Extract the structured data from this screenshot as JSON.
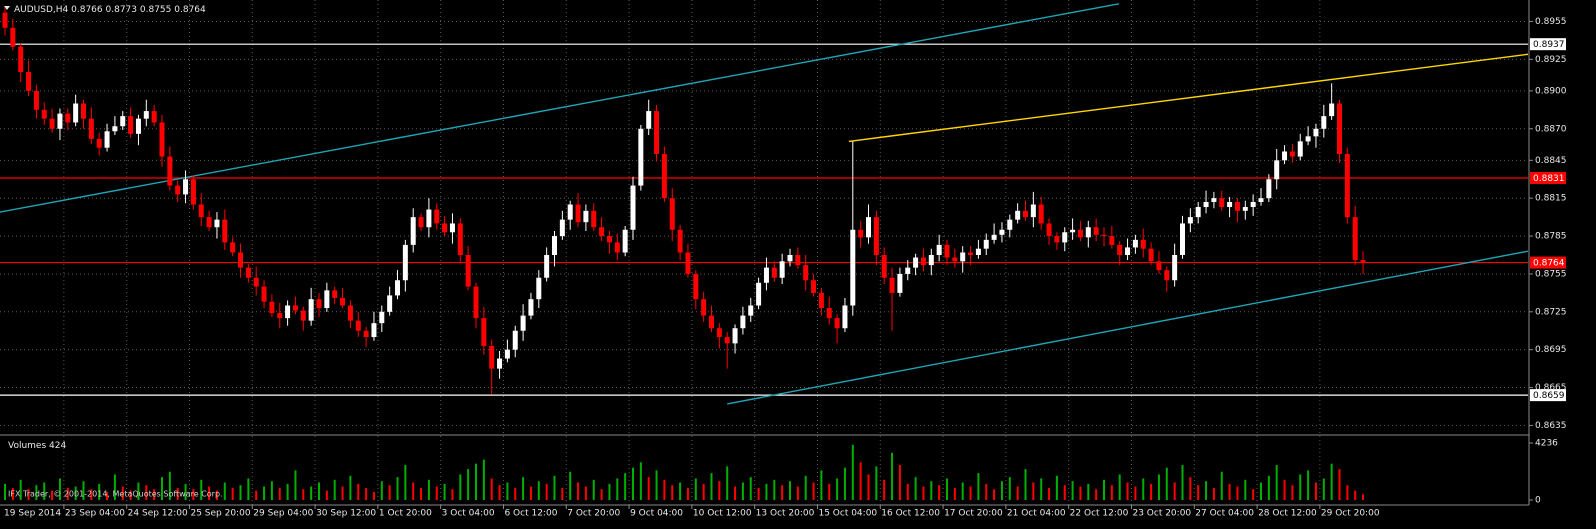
{
  "chart_data": {
    "type": "candlestick",
    "symbol": "AUDUSD,H4",
    "ohlc": [
      [
        0.8962,
        0.8966,
        0.8944,
        0.895
      ],
      [
        0.895,
        0.8957,
        0.8932,
        0.8935
      ],
      [
        0.8935,
        0.8938,
        0.8907,
        0.8915
      ],
      [
        0.8915,
        0.8924,
        0.8896,
        0.89
      ],
      [
        0.89,
        0.8905,
        0.8878,
        0.8885
      ],
      [
        0.8885,
        0.8891,
        0.8873,
        0.8878
      ],
      [
        0.8878,
        0.8886,
        0.8867,
        0.887
      ],
      [
        0.887,
        0.8886,
        0.8861,
        0.8882
      ],
      [
        0.8882,
        0.8886,
        0.8869,
        0.8875
      ],
      [
        0.8875,
        0.8897,
        0.8872,
        0.889
      ],
      [
        0.889,
        0.8893,
        0.887,
        0.8878
      ],
      [
        0.8878,
        0.8887,
        0.8858,
        0.8862
      ],
      [
        0.8862,
        0.8867,
        0.8849,
        0.8855
      ],
      [
        0.8855,
        0.8874,
        0.8852,
        0.8868
      ],
      [
        0.8868,
        0.888,
        0.8865,
        0.8872
      ],
      [
        0.8872,
        0.8884,
        0.8869,
        0.888
      ],
      [
        0.888,
        0.8887,
        0.8863,
        0.8866
      ],
      [
        0.8866,
        0.8881,
        0.8857,
        0.8878
      ],
      [
        0.8878,
        0.8893,
        0.8872,
        0.8884
      ],
      [
        0.8884,
        0.8889,
        0.8872,
        0.8875
      ],
      [
        0.8875,
        0.8881,
        0.884,
        0.8848
      ],
      [
        0.8848,
        0.8856,
        0.8821,
        0.8825
      ],
      [
        0.8825,
        0.8829,
        0.8812,
        0.8818
      ],
      [
        0.8818,
        0.8837,
        0.8811,
        0.883
      ],
      [
        0.883,
        0.8833,
        0.8806,
        0.881
      ],
      [
        0.881,
        0.8819,
        0.8793,
        0.88
      ],
      [
        0.88,
        0.8805,
        0.8789,
        0.8792
      ],
      [
        0.8792,
        0.8804,
        0.8783,
        0.8798
      ],
      [
        0.8798,
        0.8806,
        0.8774,
        0.878
      ],
      [
        0.878,
        0.8784,
        0.8769,
        0.8772
      ],
      [
        0.8772,
        0.8779,
        0.8752,
        0.876
      ],
      [
        0.876,
        0.8763,
        0.8748,
        0.8752
      ],
      [
        0.8752,
        0.8761,
        0.8738,
        0.8745
      ],
      [
        0.8745,
        0.875,
        0.8728,
        0.8733
      ],
      [
        0.8733,
        0.8739,
        0.8721,
        0.8724
      ],
      [
        0.8724,
        0.8732,
        0.8712,
        0.872
      ],
      [
        0.872,
        0.8734,
        0.8714,
        0.873
      ],
      [
        0.873,
        0.8737,
        0.8723,
        0.8726
      ],
      [
        0.8726,
        0.8729,
        0.871,
        0.8718
      ],
      [
        0.8718,
        0.8744,
        0.8714,
        0.8735
      ],
      [
        0.8735,
        0.874,
        0.8721,
        0.8728
      ],
      [
        0.8728,
        0.8748,
        0.8725,
        0.8742
      ],
      [
        0.8742,
        0.8745,
        0.8731,
        0.8736
      ],
      [
        0.8736,
        0.8744,
        0.8728,
        0.873
      ],
      [
        0.873,
        0.8734,
        0.8712,
        0.8718
      ],
      [
        0.8718,
        0.8725,
        0.8705,
        0.871
      ],
      [
        0.871,
        0.8713,
        0.8697,
        0.8705
      ],
      [
        0.8705,
        0.8725,
        0.8702,
        0.8716
      ],
      [
        0.8716,
        0.873,
        0.8709,
        0.8725
      ],
      [
        0.8725,
        0.8745,
        0.8722,
        0.8738
      ],
      [
        0.8738,
        0.8758,
        0.8735,
        0.875
      ],
      [
        0.875,
        0.8782,
        0.8741,
        0.8778
      ],
      [
        0.8778,
        0.8807,
        0.8772,
        0.88
      ],
      [
        0.88,
        0.8803,
        0.8789,
        0.8792
      ],
      [
        0.8792,
        0.8815,
        0.8784,
        0.8806
      ],
      [
        0.8806,
        0.8811,
        0.879,
        0.8795
      ],
      [
        0.8795,
        0.8801,
        0.8785,
        0.8788
      ],
      [
        0.8788,
        0.8803,
        0.8779,
        0.8795
      ],
      [
        0.8795,
        0.8799,
        0.8764,
        0.877
      ],
      [
        0.877,
        0.8777,
        0.8742,
        0.8745
      ],
      [
        0.8745,
        0.8748,
        0.8712,
        0.872
      ],
      [
        0.872,
        0.8729,
        0.8691,
        0.8698
      ],
      [
        0.8698,
        0.8703,
        0.866,
        0.868
      ],
      [
        0.868,
        0.8694,
        0.8672,
        0.8688
      ],
      [
        0.8688,
        0.8703,
        0.8685,
        0.8695
      ],
      [
        0.8695,
        0.8714,
        0.8689,
        0.871
      ],
      [
        0.871,
        0.8731,
        0.8702,
        0.8722
      ],
      [
        0.8722,
        0.874,
        0.8719,
        0.8735
      ],
      [
        0.8735,
        0.8758,
        0.8728,
        0.8752
      ],
      [
        0.8752,
        0.8776,
        0.8749,
        0.877
      ],
      [
        0.877,
        0.8789,
        0.8761,
        0.8785
      ],
      [
        0.8785,
        0.8805,
        0.8782,
        0.8798
      ],
      [
        0.8798,
        0.8813,
        0.879,
        0.881
      ],
      [
        0.881,
        0.8819,
        0.8792,
        0.8796
      ],
      [
        0.8796,
        0.881,
        0.8789,
        0.8805
      ],
      [
        0.8805,
        0.8811,
        0.8789,
        0.8792
      ],
      [
        0.8792,
        0.88,
        0.8781,
        0.8785
      ],
      [
        0.8785,
        0.8789,
        0.8771,
        0.878
      ],
      [
        0.878,
        0.8787,
        0.8766,
        0.8772
      ],
      [
        0.8772,
        0.8793,
        0.8769,
        0.879
      ],
      [
        0.879,
        0.8832,
        0.8782,
        0.8825
      ],
      [
        0.8825,
        0.8873,
        0.8821,
        0.887
      ],
      [
        0.887,
        0.8893,
        0.8865,
        0.8884
      ],
      [
        0.8884,
        0.8889,
        0.8844,
        0.885
      ],
      [
        0.885,
        0.8856,
        0.8812,
        0.8815
      ],
      [
        0.8815,
        0.8823,
        0.8781,
        0.879
      ],
      [
        0.879,
        0.8794,
        0.8766,
        0.8772
      ],
      [
        0.8772,
        0.8779,
        0.8752,
        0.8755
      ],
      [
        0.8755,
        0.8758,
        0.8727,
        0.8735
      ],
      [
        0.8735,
        0.8741,
        0.8717,
        0.8722
      ],
      [
        0.8722,
        0.873,
        0.8709,
        0.8712
      ],
      [
        0.8712,
        0.8716,
        0.8696,
        0.8705
      ],
      [
        0.8705,
        0.8709,
        0.868,
        0.87
      ],
      [
        0.87,
        0.8715,
        0.8692,
        0.8712
      ],
      [
        0.8712,
        0.8729,
        0.8707,
        0.8722
      ],
      [
        0.8722,
        0.8736,
        0.8717,
        0.873
      ],
      [
        0.873,
        0.8752,
        0.8727,
        0.8748
      ],
      [
        0.8748,
        0.8768,
        0.8742,
        0.876
      ],
      [
        0.876,
        0.8765,
        0.8749,
        0.8752
      ],
      [
        0.8752,
        0.8771,
        0.8747,
        0.8765
      ],
      [
        0.8765,
        0.8775,
        0.8761,
        0.877
      ],
      [
        0.877,
        0.8776,
        0.8759,
        0.8762
      ],
      [
        0.8762,
        0.877,
        0.8742,
        0.875
      ],
      [
        0.875,
        0.8755,
        0.8737,
        0.874
      ],
      [
        0.874,
        0.8744,
        0.8722,
        0.8728
      ],
      [
        0.8728,
        0.8737,
        0.8715,
        0.872
      ],
      [
        0.872,
        0.8723,
        0.87,
        0.8712
      ],
      [
        0.8712,
        0.8736,
        0.8709,
        0.873
      ],
      [
        0.873,
        0.886,
        0.8722,
        0.879
      ],
      [
        0.879,
        0.8797,
        0.8776,
        0.8784
      ],
      [
        0.8784,
        0.881,
        0.8779,
        0.88
      ],
      [
        0.88,
        0.8805,
        0.8762,
        0.877
      ],
      [
        0.877,
        0.8776,
        0.8747,
        0.8752
      ],
      [
        0.8752,
        0.876,
        0.871,
        0.874
      ],
      [
        0.874,
        0.876,
        0.8737,
        0.8755
      ],
      [
        0.8755,
        0.8766,
        0.875,
        0.876
      ],
      [
        0.876,
        0.8771,
        0.8754,
        0.8768
      ],
      [
        0.8768,
        0.8775,
        0.8757,
        0.8762
      ],
      [
        0.8762,
        0.8775,
        0.8754,
        0.877
      ],
      [
        0.877,
        0.8786,
        0.8765,
        0.8778
      ],
      [
        0.8778,
        0.8782,
        0.8762,
        0.8768
      ],
      [
        0.8768,
        0.8775,
        0.876,
        0.8765
      ],
      [
        0.8765,
        0.8777,
        0.8756,
        0.8772
      ],
      [
        0.8772,
        0.8777,
        0.8762,
        0.877
      ],
      [
        0.877,
        0.8782,
        0.8767,
        0.8775
      ],
      [
        0.8775,
        0.8787,
        0.877,
        0.8782
      ],
      [
        0.8782,
        0.8795,
        0.8779,
        0.8786
      ],
      [
        0.8786,
        0.8796,
        0.878,
        0.879
      ],
      [
        0.879,
        0.8802,
        0.8784,
        0.8798
      ],
      [
        0.8798,
        0.8811,
        0.8795,
        0.8805
      ],
      [
        0.8805,
        0.8813,
        0.8797,
        0.88
      ],
      [
        0.88,
        0.882,
        0.8792,
        0.881
      ],
      [
        0.881,
        0.8816,
        0.879,
        0.8795
      ],
      [
        0.8795,
        0.8799,
        0.8778,
        0.8785
      ],
      [
        0.8785,
        0.8788,
        0.8774,
        0.878
      ],
      [
        0.878,
        0.8792,
        0.8773,
        0.8788
      ],
      [
        0.8788,
        0.8799,
        0.8782,
        0.879
      ],
      [
        0.879,
        0.8797,
        0.8781,
        0.8784
      ],
      [
        0.8784,
        0.8797,
        0.8776,
        0.8792
      ],
      [
        0.8792,
        0.8799,
        0.8781,
        0.8786
      ],
      [
        0.8786,
        0.8792,
        0.8777,
        0.8785
      ],
      [
        0.8785,
        0.8793,
        0.8775,
        0.8778
      ],
      [
        0.8778,
        0.8781,
        0.8762,
        0.877
      ],
      [
        0.877,
        0.8783,
        0.8766,
        0.8776
      ],
      [
        0.8776,
        0.8786,
        0.8771,
        0.8782
      ],
      [
        0.8782,
        0.8791,
        0.8768,
        0.8775
      ],
      [
        0.8775,
        0.878,
        0.8762,
        0.8765
      ],
      [
        0.8765,
        0.8773,
        0.8755,
        0.8758
      ],
      [
        0.8758,
        0.8761,
        0.8741,
        0.875
      ],
      [
        0.875,
        0.8779,
        0.8745,
        0.877
      ],
      [
        0.877,
        0.8801,
        0.8767,
        0.8795
      ],
      [
        0.8795,
        0.8807,
        0.8788,
        0.88
      ],
      [
        0.88,
        0.8812,
        0.8795,
        0.8808
      ],
      [
        0.8808,
        0.8821,
        0.8803,
        0.8812
      ],
      [
        0.8812,
        0.882,
        0.8807,
        0.8815
      ],
      [
        0.8815,
        0.8821,
        0.8805,
        0.8808
      ],
      [
        0.8808,
        0.8816,
        0.88,
        0.8812
      ],
      [
        0.8812,
        0.8815,
        0.8796,
        0.8805
      ],
      [
        0.8805,
        0.8813,
        0.8798,
        0.8808
      ],
      [
        0.8808,
        0.8818,
        0.8801,
        0.8812
      ],
      [
        0.8812,
        0.8823,
        0.8809,
        0.8815
      ],
      [
        0.8815,
        0.8834,
        0.8812,
        0.883
      ],
      [
        0.883,
        0.8854,
        0.8822,
        0.8845
      ],
      [
        0.8845,
        0.8857,
        0.8842,
        0.8852
      ],
      [
        0.8852,
        0.8858,
        0.8843,
        0.8848
      ],
      [
        0.8848,
        0.8866,
        0.8845,
        0.886
      ],
      [
        0.886,
        0.8872,
        0.8857,
        0.8864
      ],
      [
        0.8864,
        0.8874,
        0.8855,
        0.887
      ],
      [
        0.887,
        0.8889,
        0.8863,
        0.888
      ],
      [
        0.888,
        0.8906,
        0.8877,
        0.889
      ],
      [
        0.889,
        0.8893,
        0.8843,
        0.885
      ],
      [
        0.885,
        0.8855,
        0.8795,
        0.88
      ],
      [
        0.88,
        0.8809,
        0.8762,
        0.8766
      ],
      [
        0.8766,
        0.8773,
        0.8755,
        0.8764
      ]
    ],
    "up_color": "#ffffff",
    "down_color": "#ff0000",
    "ylim": [
      0.8629,
      0.8972
    ],
    "yticks": [
      0.8955,
      0.8925,
      {
        "value": 0.89,
        "label": "0.8900"
      },
      {
        "value": 0.887,
        "label": "0.8870"
      },
      0.8845,
      0.8815,
      0.8785,
      0.8755,
      0.8725,
      0.8695,
      0.8665,
      0.8635
    ],
    "grid": true,
    "levels": [
      {
        "value": 0.8937,
        "color": "#ffffff",
        "label_text_color": "#000000"
      },
      {
        "value": 0.8831,
        "color": "#ff0000",
        "label_text_color": "#ffffff"
      },
      {
        "value": 0.8764,
        "color": "#ff0000",
        "label_text_color": "#ffffff"
      },
      {
        "value": 0.8659,
        "color": "#ffffff",
        "label_text_color": "#000000"
      }
    ],
    "trendlines": [
      {
        "color": "#1fa5b5",
        "points": [
          [
            -0.65,
            0.8804
          ],
          [
            141.9,
            0.8969
          ]
        ]
      },
      {
        "color": "#1fa5b5",
        "points": [
          [
            92,
            0.8652
          ],
          [
            196.5,
            0.8776
          ]
        ]
      },
      {
        "color": "#ffd700",
        "points": [
          [
            107.5,
            0.886
          ],
          [
            196.5,
            0.8931
          ]
        ]
      }
    ],
    "volume_title": "Volumes",
    "volumes": [
      1200,
      900,
      1500,
      800,
      1100,
      1300,
      700,
      1600,
      900,
      1000,
      1400,
      800,
      1200,
      600,
      1900,
      1000,
      700,
      1300,
      1100,
      800,
      1700,
      2100,
      900,
      1200,
      800,
      1500,
      1000,
      700,
      1300,
      900,
      1100,
      1600,
      700,
      1000,
      1400,
      900,
      1200,
      2200,
      800,
      1000,
      1300,
      700,
      1500,
      1000,
      1800,
      1200,
      900,
      600,
      1400,
      1100,
      1700,
      2600,
      1300,
      900,
      1500,
      1000,
      1200,
      800,
      1900,
      2300,
      2700,
      3000,
      1600,
      1100,
      1300,
      900,
      1700,
      1000,
      1400,
      1200,
      1800,
      900,
      2100,
      1300,
      1000,
      1500,
      800,
      1200,
      1600,
      2000,
      2400,
      2800,
      1700,
      2200,
      1500,
      1100,
      1300,
      900,
      1600,
      1200,
      2000,
      1400,
      2500,
      1000,
      1300,
      1700,
      900,
      1200,
      1500,
      1100,
      1400,
      1000,
      1800,
      1300,
      2200,
      1200,
      1600,
      2400,
      4100,
      2800,
      1900,
      2500,
      1500,
      3500,
      2600,
      1200,
      1700,
      1000,
      1400,
      1100,
      1600,
      900,
      1300,
      1000,
      2000,
      1200,
      800,
      1400,
      1700,
      1000,
      2300,
      1300,
      1600,
      900,
      1800,
      1100,
      1400,
      1000,
      1200,
      800,
      1500,
      1100,
      1900,
      1300,
      1000,
      1600,
      1200,
      1900,
      2400,
      1300,
      2600,
      1700,
      1100,
      1400,
      900,
      2100,
      1200,
      1000,
      1500,
      800,
      1300,
      1800,
      2600,
      1500,
      1100,
      1900,
      2200,
      1300,
      1600,
      2700,
      2300,
      1100,
      700,
      424
    ],
    "volume_up_color": "#00b000",
    "volume_down_color": "#ff0000",
    "volume_ylim": [
      0,
      4236
    ],
    "volume_yticks": [
      0,
      4236
    ],
    "time_labels": [
      "19 Sep 2014",
      "23 Sep 04:00",
      "24 Sep 12:00",
      "25 Sep 20:00",
      "29 Sep 04:00",
      "30 Sep 12:00",
      "1 Oct 20:00",
      "3 Oct 04:00",
      "6 Oct 12:00",
      "7 Oct 20:00",
      "9 Oct 04:00",
      "10 Oct 12:00",
      "13 Oct 20:00",
      "15 Oct 04:00",
      "16 Oct 12:00",
      "17 Oct 20:00",
      "21 Oct 04:00",
      "22 Oct 12:00",
      "23 Oct 20:00",
      "27 Oct 04:00",
      "28 Oct 12:00",
      "29 Oct 20:00"
    ],
    "watermark": "IFX Trader, © 2001-2014, MetaQuotes Software Corp."
  }
}
